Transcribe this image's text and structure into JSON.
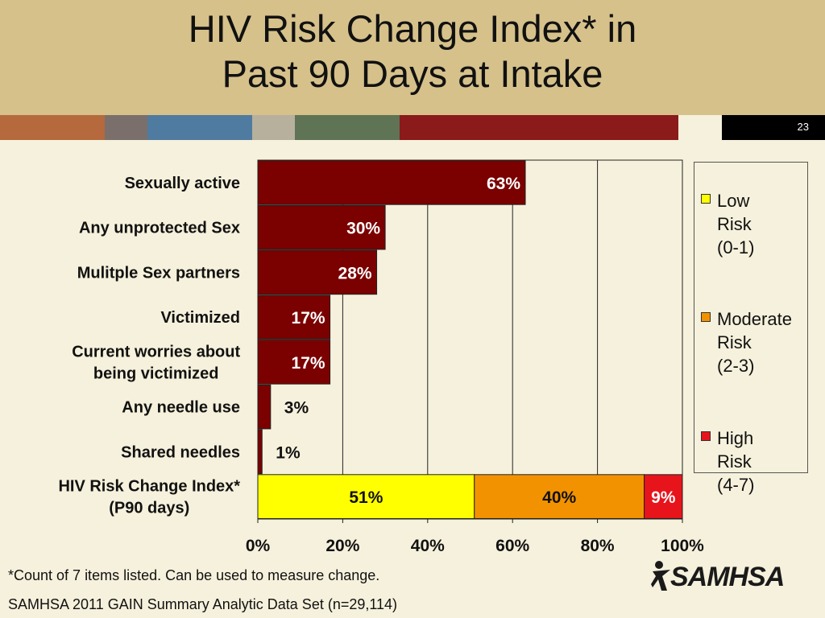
{
  "slide": {
    "title_lines": [
      "HIV Risk Change Index* in",
      "Past 90 Days at Intake"
    ],
    "number": "23",
    "footnote": "*Count of 7 items listed.  Can be used to measure change.",
    "source": "SAMHSA 2011 GAIN Summary Analytic Data Set (n=29,114)",
    "logo_text": "SAMHSA",
    "stripe_colors": [
      "#b5693d",
      "#7b6f6c",
      "#4f7ba0",
      "#b7b09d",
      "#5f7355",
      "#8b1a1a",
      "#f6f1dc",
      "#000000"
    ]
  },
  "chart_data": {
    "type": "bar",
    "orientation": "horizontal",
    "categories": [
      "Sexually active",
      "Any unprotected Sex",
      "Mulitple Sex partners",
      "Victimized",
      "Current worries about\nbeing victimized",
      "Any needle use",
      "Shared needles",
      "HIV Risk Change Index*\n(P90 days)"
    ],
    "single_values": [
      63,
      30,
      28,
      17,
      17,
      3,
      1
    ],
    "single_labels": [
      "63%",
      "30%",
      "28%",
      "17%",
      "17%",
      "3%",
      "1%"
    ],
    "single_color": "#7b0000",
    "stacked": {
      "category_index": 7,
      "series": [
        {
          "name": "Low\nRisk\n(0-1)",
          "value": 51,
          "label": "51%",
          "color": "#ffff00"
        },
        {
          "name": "Moderate\nRisk\n(2-3)",
          "value": 40,
          "label": "40%",
          "color": "#f39200"
        },
        {
          "name": "High\nRisk\n(4-7)",
          "value": 9,
          "label": "9%",
          "color": "#e8141b"
        }
      ]
    },
    "x_ticks": [
      "0%",
      "20%",
      "40%",
      "60%",
      "80%",
      "100%"
    ],
    "xlim": [
      0,
      100
    ],
    "grid": true,
    "legend_position": "right"
  }
}
